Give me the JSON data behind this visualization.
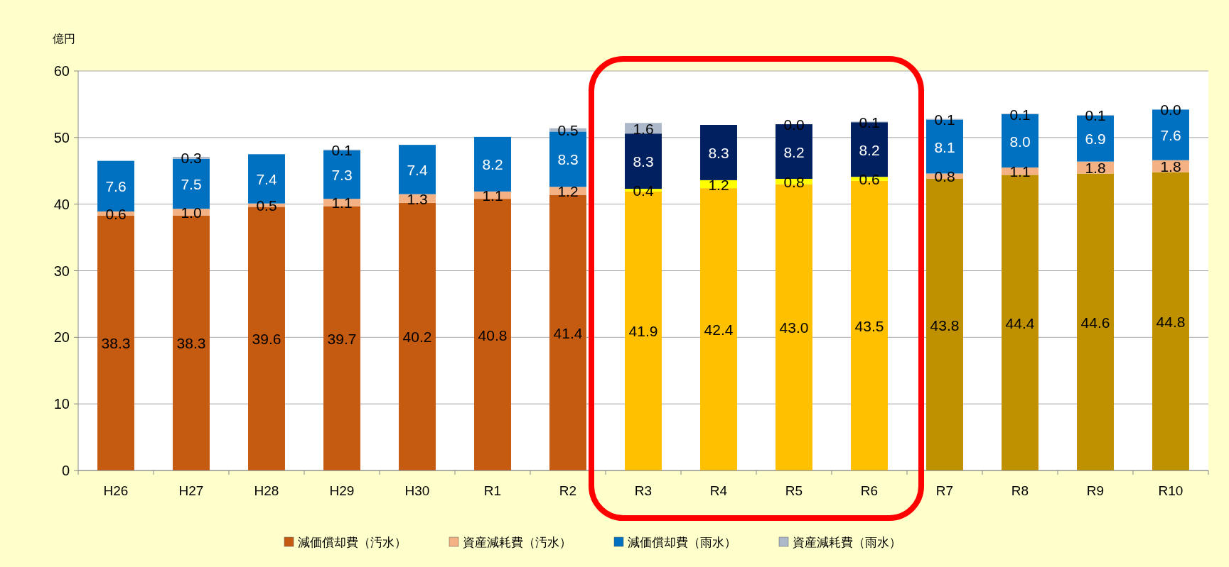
{
  "chart_data": {
    "type": "bar",
    "stacked": true,
    "ylabel": "億円",
    "ylim": [
      0,
      60
    ],
    "yticks": [
      0,
      10,
      20,
      30,
      40,
      50,
      60
    ],
    "grid": "y",
    "legend": "bottom",
    "categories": [
      "H26",
      "H27",
      "H28",
      "H29",
      "H30",
      "R1",
      "R2",
      "R3",
      "R4",
      "R5",
      "R6",
      "R7",
      "R8",
      "R9",
      "R10"
    ],
    "series": [
      {
        "name": "減価償却費（汚水）",
        "color": "#c55a11",
        "colors": [
          "#c55a11",
          "#c55a11",
          "#c55a11",
          "#c55a11",
          "#c55a11",
          "#c55a11",
          "#c55a11",
          "#ffc000",
          "#ffc000",
          "#ffc000",
          "#ffc000",
          "#bf9000",
          "#bf9000",
          "#bf9000",
          "#bf9000"
        ],
        "values": [
          38.3,
          38.3,
          39.6,
          39.7,
          40.2,
          40.8,
          41.4,
          41.9,
          42.4,
          43.0,
          43.5,
          43.8,
          44.4,
          44.6,
          44.8
        ],
        "value_labels": [
          "38.3",
          "38.3",
          "39.6",
          "39.7",
          "40.2",
          "40.8",
          "41.4",
          "41.9",
          "42.4",
          "43.0",
          "43.5",
          "43.8",
          "44.4",
          "44.6",
          "44.8"
        ]
      },
      {
        "name": "資産減耗費（汚水）",
        "color": "#f4b183",
        "colors": [
          "#f4b183",
          "#f4b183",
          "#f4b183",
          "#f4b183",
          "#f4b183",
          "#f4b183",
          "#f4b183",
          "#ffff00",
          "#ffff00",
          "#ffff00",
          "#ffff00",
          "#f4b183",
          "#f4b183",
          "#f4b183",
          "#f4b183"
        ],
        "values": [
          0.6,
          1.0,
          0.5,
          1.1,
          1.3,
          1.1,
          1.2,
          0.4,
          1.2,
          0.8,
          0.6,
          0.8,
          1.1,
          1.8,
          1.8
        ],
        "value_labels": [
          "0.6",
          "1.0",
          "0.5",
          "1.1",
          "1.3",
          "1.1",
          "1.2",
          "0.4",
          "1.2",
          "0.8",
          "0.6",
          "0.8",
          "1.1",
          "1.8",
          "1.8"
        ]
      },
      {
        "name": "減価償却費（雨水）",
        "color": "#0070c0",
        "colors": [
          "#0070c0",
          "#0070c0",
          "#0070c0",
          "#0070c0",
          "#0070c0",
          "#0070c0",
          "#0070c0",
          "#002060",
          "#002060",
          "#002060",
          "#002060",
          "#0070c0",
          "#0070c0",
          "#0070c0",
          "#0070c0"
        ],
        "values": [
          7.6,
          7.5,
          7.4,
          7.3,
          7.4,
          8.2,
          8.3,
          8.3,
          8.3,
          8.2,
          8.2,
          8.1,
          8.0,
          6.9,
          7.6
        ],
        "value_labels": [
          "7.6",
          "7.5",
          "7.4",
          "7.3",
          "7.4",
          "8.2",
          "8.3",
          "8.3",
          "8.3",
          "8.2",
          "8.2",
          "8.1",
          "8.0",
          "6.9",
          "7.6"
        ]
      },
      {
        "name": "資産減耗費（雨水）",
        "color": "#adb9ca",
        "values": [
          null,
          0.3,
          null,
          0.1,
          null,
          null,
          0.5,
          1.6,
          null,
          0.0,
          0.1,
          0.1,
          0.1,
          0.1,
          0.0
        ],
        "value_labels": [
          null,
          "0.3",
          null,
          "0.1",
          null,
          null,
          "0.5",
          "1.6",
          null,
          "0.0",
          "0.1",
          "0.1",
          "0.1",
          "0.1",
          "0.0"
        ]
      }
    ]
  }
}
